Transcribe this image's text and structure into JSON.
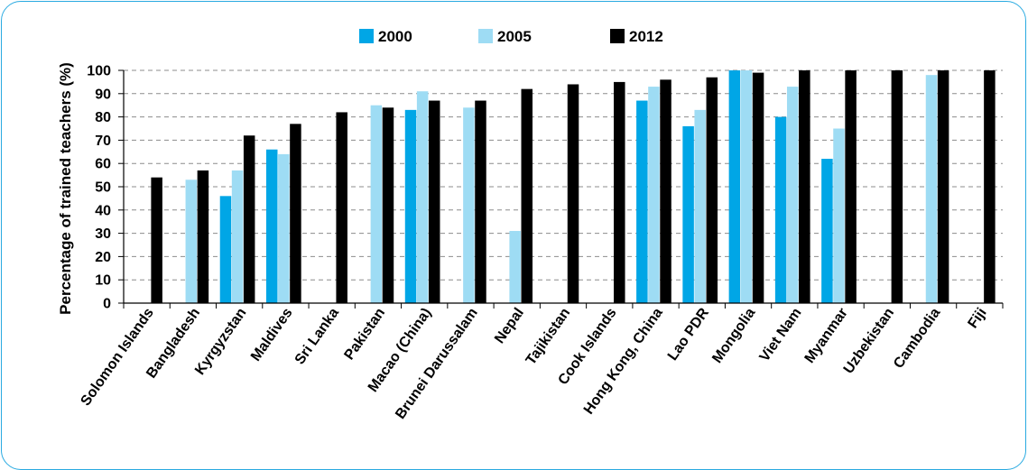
{
  "colors": {
    "frame": "#29aae1",
    "grid": "#8c8c8c",
    "axis": "#000000",
    "s2000": "#00a6e6",
    "s2005": "#9edcf4",
    "s2012": "#000000"
  },
  "chart_data": {
    "type": "bar",
    "title": "",
    "xlabel": "",
    "ylabel": "Percentage of trained teachers (%)",
    "ylim": [
      0,
      100
    ],
    "yticks": [
      0,
      10,
      20,
      30,
      40,
      50,
      60,
      70,
      80,
      90,
      100
    ],
    "grid": true,
    "legend_position": "top",
    "categories": [
      "Solomon Islands",
      "Bangladesh",
      "Kyrgyzstan",
      "Maldives",
      "Sri Lanka",
      "Pakistan",
      "Macao (China)",
      "Brunei Darussalam",
      "Nepal",
      "Tajikistan",
      "Cook Islands",
      "Hong Kong, China",
      "Lao PDR",
      "Mongolia",
      "Viet Nam",
      "Myanmar",
      "Uzbekistan",
      "Cambodia",
      "Fiji"
    ],
    "series": [
      {
        "name": "2000",
        "color": "#00a6e6",
        "values": [
          null,
          null,
          46,
          66,
          null,
          null,
          83,
          null,
          null,
          null,
          null,
          87,
          76,
          100,
          80,
          62,
          null,
          null,
          null
        ]
      },
      {
        "name": "2005",
        "color": "#9edcf4",
        "values": [
          null,
          53,
          57,
          64,
          null,
          85,
          91,
          84,
          31,
          null,
          null,
          93,
          83,
          100,
          93,
          75,
          null,
          98,
          null
        ]
      },
      {
        "name": "2012",
        "color": "#000000",
        "values": [
          54,
          57,
          72,
          77,
          82,
          84,
          87,
          87,
          92,
          94,
          95,
          96,
          97,
          99,
          100,
          100,
          100,
          100,
          100
        ]
      }
    ]
  }
}
